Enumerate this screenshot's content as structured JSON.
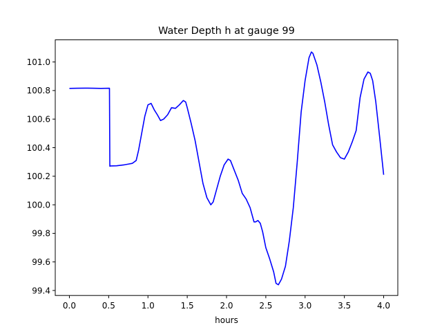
{
  "chart_data": {
    "type": "line",
    "title": "Water Depth h at gauge 99",
    "xlabel": "hours",
    "ylabel": "",
    "xlim": [
      -0.18,
      4.18
    ],
    "ylim": [
      99.365,
      101.155
    ],
    "xticks": [
      0.0,
      0.5,
      1.0,
      1.5,
      2.0,
      2.5,
      3.0,
      3.5,
      4.0
    ],
    "xtick_labels": [
      "0.0",
      "0.5",
      "1.0",
      "1.5",
      "2.0",
      "2.5",
      "3.0",
      "3.5",
      "4.0"
    ],
    "yticks": [
      99.4,
      99.6,
      99.8,
      100.0,
      100.2,
      100.4,
      100.6,
      100.8,
      101.0
    ],
    "ytick_labels": [
      "99.4",
      "99.6",
      "99.8",
      "100.0",
      "100.2",
      "100.4",
      "100.6",
      "100.8",
      "101.0"
    ],
    "grid": false,
    "color": "#0000ff",
    "series": [
      {
        "x": [
          0.0,
          0.1,
          0.2,
          0.3,
          0.4,
          0.51,
          0.515,
          0.52,
          0.6,
          0.7,
          0.75,
          0.8,
          0.85,
          0.88,
          0.92,
          0.96,
          1.0,
          1.04,
          1.08,
          1.12,
          1.16,
          1.2,
          1.25,
          1.3,
          1.35,
          1.4,
          1.45,
          1.48,
          1.5,
          1.55,
          1.6,
          1.65,
          1.7,
          1.75,
          1.8,
          1.83,
          1.87,
          1.92,
          1.97,
          2.02,
          2.05,
          2.1,
          2.15,
          2.2,
          2.25,
          2.3,
          2.35,
          2.37,
          2.4,
          2.43,
          2.46,
          2.5,
          2.55,
          2.6,
          2.63,
          2.66,
          2.7,
          2.75,
          2.8,
          2.85,
          2.9,
          2.95,
          3.0,
          3.05,
          3.08,
          3.1,
          3.15,
          3.2,
          3.25,
          3.3,
          3.35,
          3.4,
          3.45,
          3.5,
          3.55,
          3.6,
          3.65,
          3.7,
          3.75,
          3.8,
          3.83,
          3.86,
          3.9,
          3.95,
          4.0
        ],
        "y": [
          100.815,
          100.816,
          100.817,
          100.816,
          100.815,
          100.816,
          100.27,
          100.272,
          100.273,
          100.28,
          100.285,
          100.29,
          100.31,
          100.38,
          100.5,
          100.62,
          100.7,
          100.71,
          100.665,
          100.63,
          100.59,
          100.6,
          100.63,
          100.68,
          100.675,
          100.7,
          100.73,
          100.72,
          100.68,
          100.57,
          100.45,
          100.3,
          100.15,
          100.05,
          100.0,
          100.02,
          100.1,
          100.2,
          100.28,
          100.32,
          100.31,
          100.24,
          100.17,
          100.08,
          100.04,
          99.98,
          99.88,
          99.88,
          99.89,
          99.87,
          99.81,
          99.7,
          99.62,
          99.53,
          99.45,
          99.44,
          99.48,
          99.57,
          99.75,
          99.98,
          100.3,
          100.65,
          100.87,
          101.03,
          101.07,
          101.06,
          100.98,
          100.86,
          100.72,
          100.56,
          100.42,
          100.37,
          100.33,
          100.32,
          100.37,
          100.44,
          100.52,
          100.75,
          100.88,
          100.93,
          100.92,
          100.87,
          100.72,
          100.47,
          100.21
        ]
      }
    ]
  }
}
